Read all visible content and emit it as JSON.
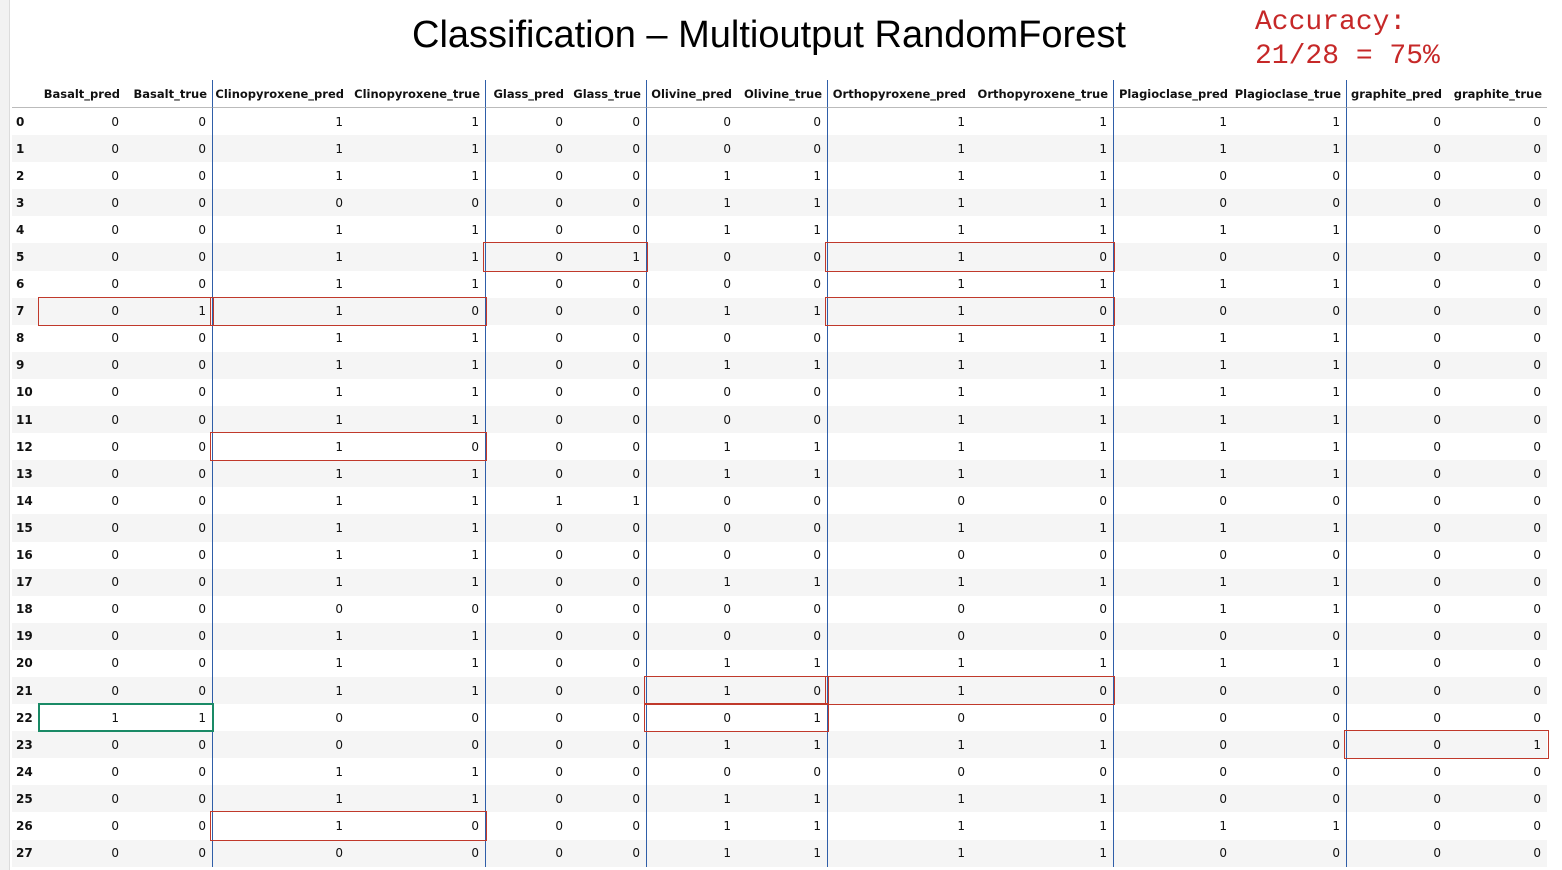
{
  "title": "Classification – Multioutput RandomForest",
  "accuracy": {
    "line1": "Accuracy:",
    "line2": "21/28 = 75%"
  },
  "colors": {
    "accent": "#c62828",
    "error_box": "#c0392b",
    "correct_box": "#1a8a66",
    "column_divider": "#2f5ea8"
  },
  "table": {
    "columns": [
      "",
      "Basalt_pred",
      "Basalt_true",
      "Clinopyroxene_pred",
      "Clinopyroxene_true",
      "Glass_pred",
      "Glass_true",
      "Olivine_pred",
      "Olivine_true",
      "Orthopyroxene_pred",
      "Orthopyroxene_true",
      "Plagioclase_pred",
      "Plagioclase_true",
      "graphite_pred",
      "graphite_true"
    ],
    "rows": [
      [
        "0",
        "0",
        "0",
        "1",
        "1",
        "0",
        "0",
        "0",
        "0",
        "1",
        "1",
        "1",
        "1",
        "0",
        "0"
      ],
      [
        "1",
        "0",
        "0",
        "1",
        "1",
        "0",
        "0",
        "0",
        "0",
        "1",
        "1",
        "1",
        "1",
        "0",
        "0"
      ],
      [
        "2",
        "0",
        "0",
        "1",
        "1",
        "0",
        "0",
        "1",
        "1",
        "1",
        "1",
        "0",
        "0",
        "0",
        "0"
      ],
      [
        "3",
        "0",
        "0",
        "0",
        "0",
        "0",
        "0",
        "1",
        "1",
        "1",
        "1",
        "0",
        "0",
        "0",
        "0"
      ],
      [
        "4",
        "0",
        "0",
        "1",
        "1",
        "0",
        "0",
        "1",
        "1",
        "1",
        "1",
        "1",
        "1",
        "0",
        "0"
      ],
      [
        "5",
        "0",
        "0",
        "1",
        "1",
        "0",
        "1",
        "0",
        "0",
        "1",
        "0",
        "0",
        "0",
        "0",
        "0"
      ],
      [
        "6",
        "0",
        "0",
        "1",
        "1",
        "0",
        "0",
        "0",
        "0",
        "1",
        "1",
        "1",
        "1",
        "0",
        "0"
      ],
      [
        "7",
        "0",
        "1",
        "1",
        "0",
        "0",
        "0",
        "1",
        "1",
        "1",
        "0",
        "0",
        "0",
        "0",
        "0"
      ],
      [
        "8",
        "0",
        "0",
        "1",
        "1",
        "0",
        "0",
        "0",
        "0",
        "1",
        "1",
        "1",
        "1",
        "0",
        "0"
      ],
      [
        "9",
        "0",
        "0",
        "1",
        "1",
        "0",
        "0",
        "1",
        "1",
        "1",
        "1",
        "1",
        "1",
        "0",
        "0"
      ],
      [
        "10",
        "0",
        "0",
        "1",
        "1",
        "0",
        "0",
        "0",
        "0",
        "1",
        "1",
        "1",
        "1",
        "0",
        "0"
      ],
      [
        "11",
        "0",
        "0",
        "1",
        "1",
        "0",
        "0",
        "0",
        "0",
        "1",
        "1",
        "1",
        "1",
        "0",
        "0"
      ],
      [
        "12",
        "0",
        "0",
        "1",
        "0",
        "0",
        "0",
        "1",
        "1",
        "1",
        "1",
        "1",
        "1",
        "0",
        "0"
      ],
      [
        "13",
        "0",
        "0",
        "1",
        "1",
        "0",
        "0",
        "1",
        "1",
        "1",
        "1",
        "1",
        "1",
        "0",
        "0"
      ],
      [
        "14",
        "0",
        "0",
        "1",
        "1",
        "1",
        "1",
        "0",
        "0",
        "0",
        "0",
        "0",
        "0",
        "0",
        "0"
      ],
      [
        "15",
        "0",
        "0",
        "1",
        "1",
        "0",
        "0",
        "0",
        "0",
        "1",
        "1",
        "1",
        "1",
        "0",
        "0"
      ],
      [
        "16",
        "0",
        "0",
        "1",
        "1",
        "0",
        "0",
        "0",
        "0",
        "0",
        "0",
        "0",
        "0",
        "0",
        "0"
      ],
      [
        "17",
        "0",
        "0",
        "1",
        "1",
        "0",
        "0",
        "1",
        "1",
        "1",
        "1",
        "1",
        "1",
        "0",
        "0"
      ],
      [
        "18",
        "0",
        "0",
        "0",
        "0",
        "0",
        "0",
        "0",
        "0",
        "0",
        "0",
        "1",
        "1",
        "0",
        "0"
      ],
      [
        "19",
        "0",
        "0",
        "1",
        "1",
        "0",
        "0",
        "0",
        "0",
        "0",
        "0",
        "0",
        "0",
        "0",
        "0"
      ],
      [
        "20",
        "0",
        "0",
        "1",
        "1",
        "0",
        "0",
        "1",
        "1",
        "1",
        "1",
        "1",
        "1",
        "0",
        "0"
      ],
      [
        "21",
        "0",
        "0",
        "1",
        "1",
        "0",
        "0",
        "1",
        "0",
        "1",
        "0",
        "0",
        "0",
        "0",
        "0"
      ],
      [
        "22",
        "1",
        "1",
        "0",
        "0",
        "0",
        "0",
        "0",
        "1",
        "0",
        "0",
        "0",
        "0",
        "0",
        "0"
      ],
      [
        "23",
        "0",
        "0",
        "0",
        "0",
        "0",
        "0",
        "1",
        "1",
        "1",
        "1",
        "0",
        "0",
        "0",
        "1"
      ],
      [
        "24",
        "0",
        "0",
        "1",
        "1",
        "0",
        "0",
        "0",
        "0",
        "0",
        "0",
        "0",
        "0",
        "0",
        "0"
      ],
      [
        "25",
        "0",
        "0",
        "1",
        "1",
        "0",
        "0",
        "1",
        "1",
        "1",
        "1",
        "0",
        "0",
        "0",
        "0"
      ],
      [
        "26",
        "0",
        "0",
        "1",
        "0",
        "0",
        "0",
        "1",
        "1",
        "1",
        "1",
        "1",
        "1",
        "0",
        "0"
      ],
      [
        "27",
        "0",
        "0",
        "0",
        "0",
        "0",
        "0",
        "1",
        "1",
        "1",
        "1",
        "0",
        "0",
        "0",
        "0"
      ]
    ],
    "highlights": [
      {
        "row": 5,
        "pair": 3,
        "kind": "error"
      },
      {
        "row": 5,
        "pair": 5,
        "kind": "error"
      },
      {
        "row": 7,
        "pair": 1,
        "kind": "error"
      },
      {
        "row": 7,
        "pair": 2,
        "kind": "error"
      },
      {
        "row": 7,
        "pair": 5,
        "kind": "error"
      },
      {
        "row": 12,
        "pair": 2,
        "kind": "error"
      },
      {
        "row": 21,
        "pair": 4,
        "kind": "error"
      },
      {
        "row": 21,
        "pair": 5,
        "kind": "error"
      },
      {
        "row": 22,
        "pair": 1,
        "kind": "correct"
      },
      {
        "row": 22,
        "pair": 4,
        "kind": "error"
      },
      {
        "row": 23,
        "pair": 7,
        "kind": "error"
      },
      {
        "row": 26,
        "pair": 2,
        "kind": "error"
      }
    ]
  }
}
